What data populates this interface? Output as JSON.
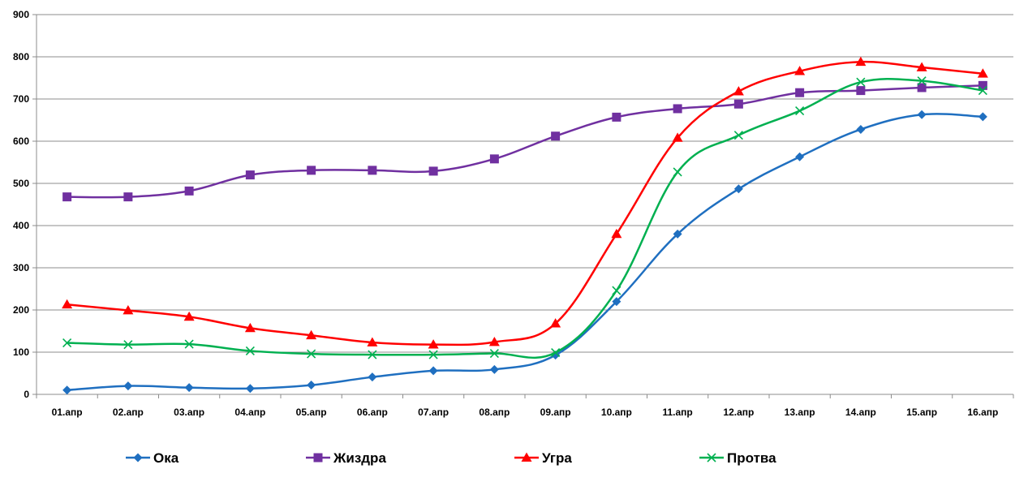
{
  "chart_data": {
    "type": "line",
    "title": "",
    "xlabel": "",
    "ylabel": "",
    "categories": [
      "01.апр",
      "02.апр",
      "03.апр",
      "04.апр",
      "05.апр",
      "06.апр",
      "07.апр",
      "08.апр",
      "09.апр",
      "10.апр",
      "11.апр",
      "12.апр",
      "13.апр",
      "14.апр",
      "15.апр",
      "16.апр"
    ],
    "ylim": [
      0,
      900
    ],
    "yticks": [
      0,
      100,
      200,
      300,
      400,
      500,
      600,
      700,
      800,
      900
    ],
    "ytick_labels": [
      "0",
      "100",
      "200",
      "300",
      "400",
      "500",
      "600",
      "700",
      "800",
      "900"
    ],
    "grid": "horizontal",
    "legend_position": "bottom",
    "series": [
      {
        "name": "Ока",
        "color": "#1f6fc0",
        "marker": "diamond",
        "values": [
          10,
          20,
          16,
          14,
          22,
          41,
          56,
          59,
          93,
          220,
          380,
          487,
          563,
          628,
          663,
          658
        ]
      },
      {
        "name": "Жиздра",
        "color": "#7030a0",
        "marker": "square",
        "values": [
          468,
          468,
          482,
          520,
          531,
          531,
          529,
          558,
          612,
          657,
          677,
          688,
          715,
          720,
          727,
          732
        ]
      },
      {
        "name": "Угра",
        "color": "#ff0000",
        "marker": "triangle",
        "values": [
          213,
          199,
          184,
          157,
          140,
          123,
          118,
          124,
          168,
          380,
          608,
          718,
          766,
          788,
          775,
          760
        ]
      },
      {
        "name": "Протва",
        "color": "#00b050",
        "marker": "x",
        "values": [
          122,
          118,
          119,
          103,
          96,
          94,
          94,
          97,
          99,
          246,
          527,
          614,
          672,
          740,
          743,
          720
        ]
      }
    ]
  }
}
